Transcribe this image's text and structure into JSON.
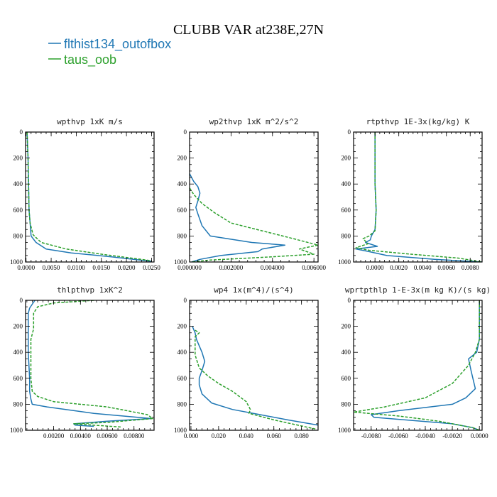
{
  "figure": {
    "title": "CLUBB VAR at238E,27N",
    "legend": [
      {
        "label": "flthist134_outofbox",
        "color": "#1f77b4"
      },
      {
        "label": "taus_oob",
        "color": "#2ca02c"
      }
    ]
  },
  "chart_data": [
    {
      "type": "line",
      "title": "wpthvp  1xK m/s",
      "xlim": [
        -0.0001,
        0.0255
      ],
      "ylim": [
        0,
        1000
      ],
      "y_inverted": true,
      "xticks": [
        0.0,
        0.005,
        0.01,
        0.015,
        0.02,
        0.025
      ],
      "xticklabels": [
        "0.0000",
        "0.0050",
        "0.0100",
        "0.0150",
        "0.0200",
        "0.0250"
      ],
      "yticks": [
        0,
        200,
        400,
        600,
        800,
        1000
      ],
      "yticklabels": [
        "0",
        "200",
        "400",
        "600",
        "800",
        "1000"
      ],
      "series": [
        {
          "name": "flthist134_outofbox",
          "x": [
            0.0002,
            0.0004,
            0.0005,
            0.0006,
            0.0008,
            0.001,
            0.002,
            0.004,
            0.009,
            0.017,
            0.025
          ],
          "y": [
            0,
            200,
            400,
            600,
            700,
            800,
            850,
            900,
            930,
            960,
            995
          ]
        },
        {
          "name": "taus_oob",
          "x": [
            0.0002,
            0.0004,
            0.0005,
            0.0006,
            0.0008,
            0.0014,
            0.003,
            0.008,
            0.015,
            0.025
          ],
          "y": [
            0,
            200,
            400,
            600,
            700,
            790,
            850,
            900,
            940,
            990
          ]
        }
      ]
    },
    {
      "type": "line",
      "title": "wp2thvp  1xK m^2/s^2",
      "xlim": [
        0.0,
        0.0062
      ],
      "ylim": [
        0,
        1000
      ],
      "y_inverted": true,
      "xticks": [
        0.0,
        0.002,
        0.004,
        0.006
      ],
      "xticklabels": [
        "0.000000",
        "0.002000",
        "0.004000",
        "0.006000"
      ],
      "yticks": [
        0,
        200,
        400,
        600,
        800,
        1000
      ],
      "yticklabels": [
        "0",
        "200",
        "400",
        "600",
        "800",
        "1000"
      ],
      "series": [
        {
          "name": "flthist134_outofbox",
          "x": [
            0.0,
            0.0002,
            0.0004,
            0.0005,
            0.0004,
            0.0003,
            0.0004,
            0.0006,
            0.001,
            0.003,
            0.0046,
            0.0035,
            0.0033,
            0.0015,
            0.0005,
            0.0001
          ],
          "y": [
            320,
            380,
            420,
            470,
            530,
            580,
            630,
            720,
            800,
            850,
            870,
            900,
            920,
            950,
            980,
            1000
          ]
        },
        {
          "name": "taus_oob",
          "x": [
            0.0,
            0.0002,
            0.0006,
            0.0012,
            0.002,
            0.0035,
            0.005,
            0.0062,
            0.0053,
            0.006,
            0.004,
            0.001,
            0.0001
          ],
          "y": [
            430,
            480,
            550,
            620,
            700,
            760,
            820,
            870,
            900,
            940,
            960,
            985,
            1000
          ]
        }
      ]
    },
    {
      "type": "line",
      "title": "rtpthvp  1E-3x(kg/kg) K",
      "xlim": [
        -0.0018,
        0.009
      ],
      "ylim": [
        0,
        1000
      ],
      "y_inverted": true,
      "xticks": [
        0.0,
        0.002,
        0.004,
        0.006,
        0.008
      ],
      "xticklabels": [
        "0.0000",
        "0.0020",
        "0.0040",
        "0.0060",
        "0.0080"
      ],
      "yticks": [
        0,
        200,
        400,
        600,
        800,
        1000
      ],
      "yticklabels": [
        "0",
        "200",
        "400",
        "600",
        "800",
        "1000"
      ],
      "series": [
        {
          "name": "flthist134_outofbox",
          "x": [
            0.0,
            0.0,
            0.0001,
            0.0,
            -0.0003,
            -0.0004,
            -0.0008,
            0.0002,
            -0.0016,
            -0.0005,
            0.001,
            0.005,
            0.009
          ],
          "y": [
            0,
            400,
            600,
            750,
            800,
            830,
            850,
            880,
            900,
            920,
            950,
            980,
            1000
          ]
        },
        {
          "name": "taus_oob",
          "x": [
            0.0,
            0.0,
            0.0001,
            0.0,
            -0.0005,
            -0.001,
            -0.0006,
            -0.0016,
            -0.0005,
            0.003,
            0.007,
            0.009
          ],
          "y": [
            0,
            400,
            600,
            760,
            800,
            820,
            860,
            890,
            910,
            940,
            970,
            1000
          ]
        }
      ]
    },
    {
      "type": "line",
      "title": "thlpthvp  1xK^2",
      "xlim": [
        -0.0001,
        0.0095
      ],
      "ylim": [
        0,
        1000
      ],
      "y_inverted": true,
      "xticks": [
        0.002,
        0.004,
        0.006,
        0.008
      ],
      "xticklabels": [
        "0.00200",
        "0.00400",
        "0.00600",
        "0.00800"
      ],
      "yticks": [
        0,
        200,
        400,
        600,
        800,
        1000
      ],
      "yticklabels": [
        "0",
        "200",
        "400",
        "600",
        "800",
        "1000"
      ],
      "series": [
        {
          "name": "flthist134_outofbox",
          "x": [
            0.0006,
            0.0004,
            0.0002,
            0.0001,
            0.0001,
            0.0001,
            0.0002,
            0.0002,
            0.0003,
            0.0004,
            0.0015,
            0.005,
            0.0093,
            0.006,
            0.0035,
            0.0036,
            0.005
          ],
          "y": [
            0,
            30,
            60,
            100,
            200,
            400,
            600,
            700,
            760,
            800,
            820,
            870,
            910,
            930,
            950,
            960,
            970
          ]
        },
        {
          "name": "taus_oob",
          "x": [
            0.005,
            0.002,
            0.0008,
            0.0005,
            0.0005,
            0.0003,
            0.0003,
            0.0003,
            0.0004,
            0.0008,
            0.002,
            0.006,
            0.009,
            0.0094,
            0.006,
            0.0035,
            0.007
          ],
          "y": [
            0,
            20,
            50,
            100,
            220,
            300,
            500,
            600,
            700,
            740,
            780,
            820,
            880,
            910,
            940,
            950,
            975
          ]
        }
      ]
    },
    {
      "type": "line",
      "title": "wp4  1x(m^4)/(s^4)",
      "xlim": [
        -0.001,
        0.092
      ],
      "ylim": [
        0,
        1000
      ],
      "y_inverted": true,
      "xticks": [
        0.0,
        0.02,
        0.04,
        0.06,
        0.08
      ],
      "xticklabels": [
        "0.000",
        "0.020",
        "0.040",
        "0.060",
        "0.080"
      ],
      "yticks": [
        0,
        200,
        400,
        600,
        800,
        1000
      ],
      "yticklabels": [
        "0",
        "200",
        "400",
        "600",
        "800",
        "1000"
      ],
      "series": [
        {
          "name": "flthist134_outofbox",
          "x": [
            0.001,
            0.003,
            0.004,
            0.008,
            0.01,
            0.008,
            0.006,
            0.006,
            0.008,
            0.015,
            0.03,
            0.05,
            0.07,
            0.092
          ],
          "y": [
            200,
            250,
            300,
            400,
            470,
            540,
            600,
            650,
            720,
            790,
            840,
            880,
            920,
            960
          ]
        },
        {
          "name": "taus_oob",
          "x": [
            0.003,
            0.006,
            0.003,
            0.003,
            0.006,
            0.012,
            0.02,
            0.03,
            0.04,
            0.043,
            0.042,
            0.06,
            0.09
          ],
          "y": [
            230,
            250,
            280,
            420,
            520,
            580,
            640,
            700,
            780,
            840,
            870,
            920,
            990
          ]
        }
      ]
    },
    {
      "type": "line",
      "title": "wprtpthlp  1-E-3x(m kg K)/(s kg)",
      "xlim": [
        -0.0093,
        0.0002
      ],
      "ylim": [
        0,
        1000
      ],
      "y_inverted": true,
      "xticks": [
        -0.008,
        -0.006,
        -0.004,
        -0.002,
        0.0
      ],
      "xticklabels": [
        "-0.0080",
        "-0.0060",
        "-0.0040",
        "-0.0020",
        "0.0000"
      ],
      "yticks": [
        0,
        200,
        400,
        600,
        800,
        1000
      ],
      "yticklabels": [
        "0",
        "200",
        "400",
        "600",
        "800",
        "1000"
      ],
      "series": [
        {
          "name": "flthist134_outofbox",
          "x": [
            0.0,
            0.0,
            -0.0002,
            -0.0008,
            -0.0006,
            -0.0003,
            -0.001,
            -0.002,
            -0.006,
            -0.008,
            -0.0078,
            -0.002,
            -0.0005,
            0.0
          ],
          "y": [
            0,
            300,
            400,
            450,
            550,
            680,
            750,
            800,
            850,
            880,
            900,
            950,
            980,
            1000
          ]
        },
        {
          "name": "taus_oob",
          "x": [
            0.0,
            0.0,
            -0.0003,
            -0.0008,
            -0.002,
            -0.004,
            -0.007,
            -0.0093,
            -0.006,
            -0.003,
            -0.0005,
            0.0
          ],
          "y": [
            0,
            300,
            400,
            500,
            640,
            750,
            820,
            860,
            890,
            930,
            980,
            1000
          ]
        }
      ]
    }
  ]
}
